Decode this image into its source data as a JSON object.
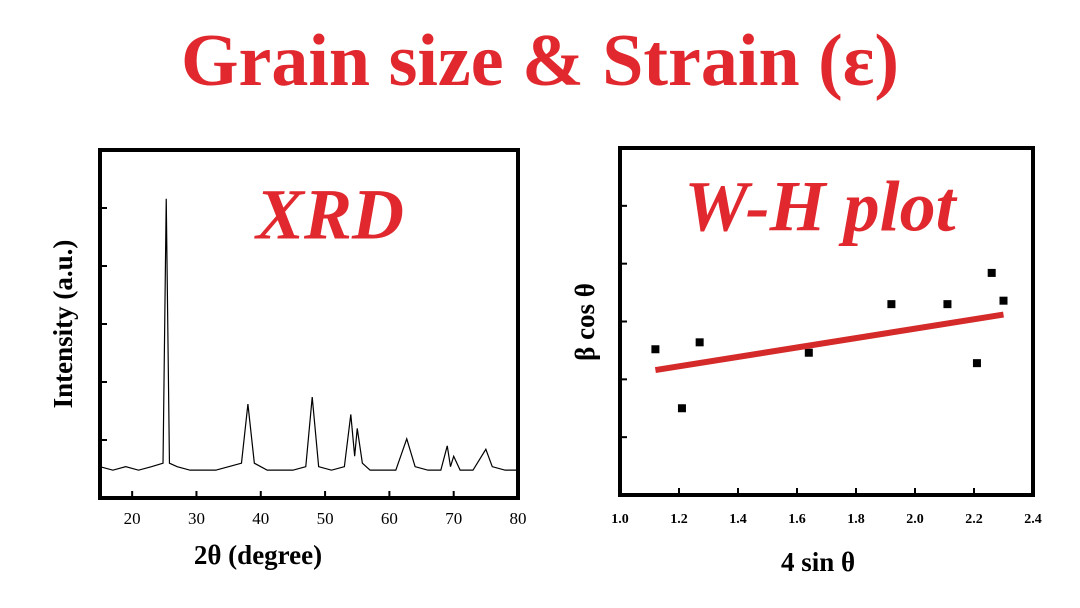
{
  "title": "Grain size & Strain (ε)",
  "chart_data": [
    {
      "type": "line",
      "annotation": "XRD",
      "xlabel": "2θ  (degree)",
      "ylabel": "Intensity (a.u.)",
      "xlim": [
        15,
        80
      ],
      "xticks": [
        20,
        30,
        40,
        50,
        60,
        70,
        80
      ],
      "ylim": [
        0,
        100
      ],
      "series": [
        {
          "color": "#000000",
          "x": [
            15,
            17,
            19,
            21,
            23,
            24.8,
            25.3,
            25.8,
            27,
            29,
            31,
            33,
            35,
            37,
            38,
            39,
            41,
            43,
            45,
            47,
            48,
            49,
            51,
            53,
            54,
            54.6,
            55,
            55.8,
            57,
            59,
            61,
            62.7,
            64,
            66,
            68,
            69,
            69.5,
            70,
            71,
            73,
            75,
            76,
            78,
            80
          ],
          "values": [
            9,
            8,
            9,
            8,
            9,
            10,
            86,
            10,
            9,
            8,
            8,
            8,
            9,
            10,
            27,
            10,
            8,
            8,
            8,
            9,
            29,
            9,
            8,
            9,
            24,
            12,
            20,
            10,
            8,
            8,
            8,
            17,
            9,
            8,
            8,
            15,
            9,
            12,
            8,
            8,
            14,
            9,
            8,
            8
          ]
        }
      ]
    },
    {
      "type": "scatter",
      "annotation": "W-H plot",
      "xlabel": "4 sin θ",
      "ylabel": "β cos θ",
      "xlim": [
        1.0,
        2.4
      ],
      "xticks": [
        {
          "value": 1,
          "label": "1.0"
        },
        1.2,
        1.4,
        1.6,
        1.8,
        {
          "value": 2,
          "label": "2.0"
        },
        2.2,
        2.4
      ],
      "ylim": [
        0,
        100
      ],
      "series": [
        {
          "color": "#000000",
          "x": [
            1.12,
            1.21,
            1.27,
            1.64,
            1.92,
            2.11,
            2.21,
            2.26,
            2.3
          ],
          "values": [
            42,
            25,
            44,
            41,
            55,
            55,
            38,
            64,
            56
          ]
        }
      ],
      "fit_line": {
        "color": "#d42a2a",
        "x": [
          1.12,
          2.3
        ],
        "values": [
          36,
          52
        ]
      }
    }
  ]
}
